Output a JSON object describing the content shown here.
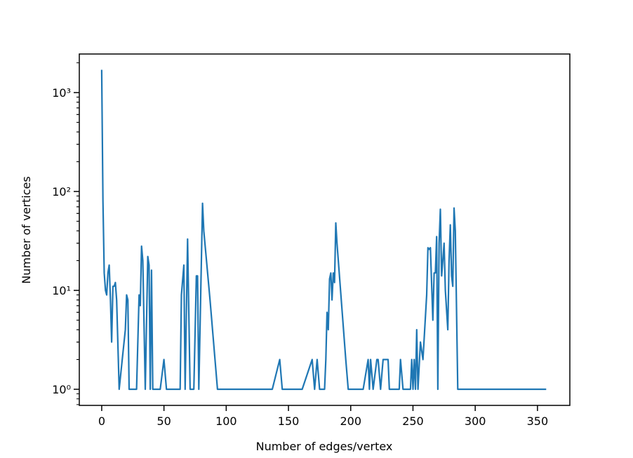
{
  "chart_data": {
    "type": "line",
    "xlabel": "Number of edges/vertex",
    "ylabel": "Number of vertices",
    "color": "#1f77b4",
    "log_y": true,
    "xlim": [
      -18,
      376
    ],
    "xticks": [
      0,
      50,
      100,
      150,
      200,
      250,
      300,
      350
    ],
    "ylim": [
      0.687,
      2455
    ],
    "yticks": [
      {
        "value": 1,
        "label": "10⁰"
      },
      {
        "value": 10,
        "label": "10¹"
      },
      {
        "value": 100,
        "label": "10²"
      },
      {
        "value": 1000,
        "label": "10³"
      }
    ],
    "x": [
      0,
      1,
      2,
      3,
      4,
      5,
      6,
      7,
      8,
      9,
      10,
      11,
      12,
      14,
      19,
      20,
      21,
      22,
      23,
      28,
      30,
      31,
      32,
      33,
      35,
      37,
      38,
      39,
      40,
      41,
      42,
      47,
      50,
      52,
      56,
      63,
      64,
      66,
      67,
      69,
      71,
      74,
      76,
      77,
      78,
      81,
      82,
      87,
      93,
      137,
      143,
      145,
      161,
      169,
      171,
      173,
      175,
      179,
      180,
      181,
      182,
      183,
      184,
      185,
      186,
      187,
      188,
      189,
      196,
      198,
      210,
      214,
      215,
      216,
      218,
      221,
      222,
      224,
      226,
      230,
      231,
      239,
      240,
      242,
      248,
      249,
      250,
      251,
      252,
      253,
      254,
      256,
      258,
      261,
      262,
      263,
      264,
      266,
      267,
      268,
      269,
      270,
      271,
      272,
      273,
      274,
      275,
      276,
      278,
      279,
      280,
      281,
      282,
      283,
      284,
      286,
      290,
      357
    ],
    "values": [
      1700,
      80,
      15,
      10,
      9,
      15,
      18,
      8,
      3,
      11,
      11,
      12,
      8,
      1,
      4,
      9,
      8,
      1,
      1,
      1,
      9,
      7,
      28,
      20,
      1,
      22,
      18,
      1,
      16,
      1,
      1,
      1,
      2,
      1,
      1,
      1,
      9,
      18,
      1,
      33,
      1,
      1,
      14,
      14,
      1,
      76,
      40,
      8,
      1,
      1,
      2,
      1,
      1,
      2,
      1,
      2,
      1,
      1,
      2,
      6,
      4,
      13,
      15,
      8,
      15,
      12,
      48,
      30,
      2,
      1,
      1,
      2,
      1,
      2,
      1,
      2,
      2,
      1,
      2,
      2,
      1,
      1,
      2,
      1,
      1,
      2,
      1,
      2,
      1,
      4,
      1,
      3,
      2,
      9,
      27,
      26,
      27,
      5,
      15,
      15,
      35,
      1,
      30,
      66,
      14,
      20,
      30,
      10,
      4,
      20,
      46,
      14,
      11,
      68,
      40,
      1,
      1,
      1
    ]
  }
}
